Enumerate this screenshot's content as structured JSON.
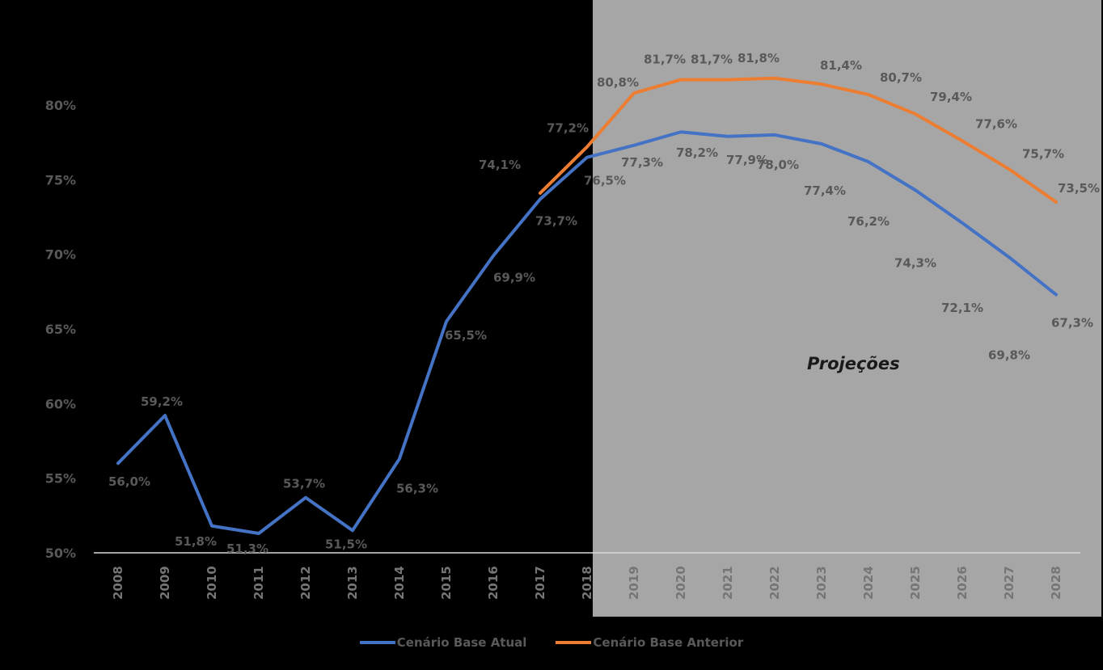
{
  "chart_data": {
    "type": "line",
    "title": "",
    "xlabel": "",
    "ylabel": "",
    "ylim": [
      50,
      80
    ],
    "yticks": [
      "50%",
      "55%",
      "60%",
      "65%",
      "70%",
      "75%",
      "80%"
    ],
    "x": [
      "2008",
      "2009",
      "2010",
      "2011",
      "2012",
      "2013",
      "2014",
      "2015",
      "2016",
      "2017",
      "2018",
      "2019",
      "2020",
      "2021",
      "2022",
      "2023",
      "2024",
      "2025",
      "2026",
      "2027",
      "2028"
    ],
    "series": [
      {
        "name": "Cenário Base Atual",
        "color": "#4472C4",
        "values": [
          56.0,
          59.2,
          51.8,
          51.3,
          53.7,
          51.5,
          56.3,
          65.5,
          69.9,
          73.7,
          76.5,
          77.3,
          78.2,
          77.9,
          78.0,
          77.4,
          76.2,
          74.3,
          72.1,
          69.8,
          67.3
        ],
        "labels": [
          "56,0%",
          "59,2%",
          "51,8%",
          "51,3%",
          "53,7%",
          "51,5%",
          "56,3%",
          "65,5%",
          "69,9%",
          "73,7%",
          "76,5%",
          "77,3%",
          "78,2%",
          "77,9%",
          "78,0%",
          "77,4%",
          "76,2%",
          "74,3%",
          "72,1%",
          "69,8%",
          "67,3%"
        ]
      },
      {
        "name": "Cenário Base Anterior",
        "color": "#ED7D31",
        "values": [
          null,
          null,
          null,
          null,
          null,
          null,
          null,
          null,
          null,
          74.1,
          77.2,
          80.8,
          81.7,
          81.7,
          81.8,
          81.4,
          80.7,
          79.4,
          77.6,
          75.7,
          73.5
        ],
        "labels": [
          null,
          null,
          null,
          null,
          null,
          null,
          null,
          null,
          null,
          "74,1%",
          "77,2%",
          "80,8%",
          "81,7%",
          "81,7%",
          "81,8%",
          "81,4%",
          "80,7%",
          "79,4%",
          "77,6%",
          "75,7%",
          "73,5%"
        ]
      }
    ],
    "annotations": [
      {
        "text": "Projeções",
        "region": "2018-2028 shaded"
      }
    ],
    "legend_position": "bottom",
    "grid": false
  },
  "annotation": {
    "projections_label": "Projeções"
  },
  "legend": {
    "items": [
      {
        "label": "Cenário Base Atual",
        "color": "#4472C4"
      },
      {
        "label": "Cenário Base Anterior",
        "color": "#ED7D31"
      }
    ]
  },
  "colors": {
    "background": "#000000",
    "projection_shade": "#A6A6A6",
    "axis": "#D9D9D9",
    "label_text": "#595959"
  }
}
